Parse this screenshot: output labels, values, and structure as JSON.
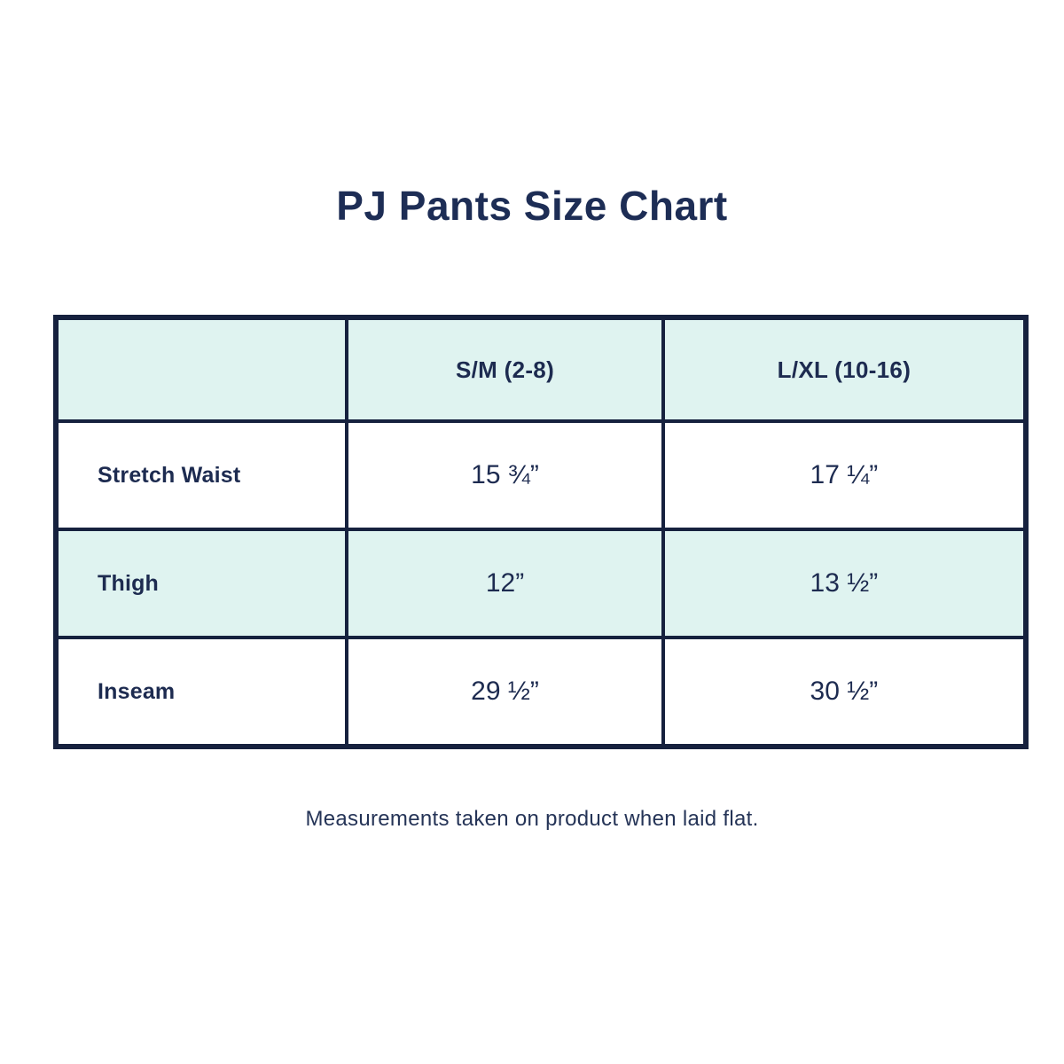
{
  "chart_data": {
    "type": "table",
    "title": "PJ Pants Size Chart",
    "columns": [
      "",
      "S/M (2-8)",
      "L/XL (10-16)"
    ],
    "rows": [
      [
        "Stretch Waist",
        "15 ¾”",
        "17 ¼”"
      ],
      [
        "Thigh",
        "12”",
        "13 ½”"
      ],
      [
        "Inseam",
        "29 ½”",
        "30 ½”"
      ]
    ],
    "footnote": "Measurements taken on product when laid flat.",
    "layout_hints": {
      "header_background": "#dff3f0",
      "alternate_row_background": "#dff3f0",
      "border_color": "#16213e",
      "text_color": "#1d2b50",
      "tinted_rows": [
        "header",
        "Thigh"
      ]
    }
  },
  "colors": {
    "navy_text": "#1d2b50",
    "navy_border": "#16213e",
    "mint": "#dff3f0",
    "background": "#ffffff"
  }
}
